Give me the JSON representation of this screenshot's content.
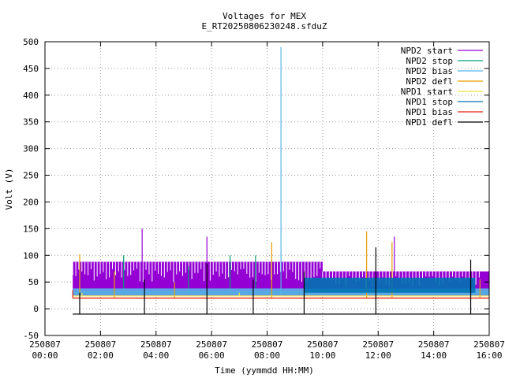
{
  "chart_data": {
    "type": "line",
    "title": "Voltages for MEX",
    "subtitle": "E_RT20250806230248.sfduZ",
    "xlabel": "Time (yymmdd HH:MM)",
    "ylabel": "Volt (V)",
    "xlim_hours": [
      0,
      16
    ],
    "ylim": [
      -50,
      500
    ],
    "grid": true,
    "legend_position": "top-right",
    "y_ticks": [
      "-50",
      "0",
      "50",
      "100",
      "150",
      "200",
      "250",
      "300",
      "350",
      "400",
      "450",
      "500"
    ],
    "x_ticks": [
      {
        "date": "250807",
        "time": "00:00"
      },
      {
        "date": "250807",
        "time": "02:00"
      },
      {
        "date": "250807",
        "time": "04:00"
      },
      {
        "date": "250807",
        "time": "06:00"
      },
      {
        "date": "250807",
        "time": "08:00"
      },
      {
        "date": "250807",
        "time": "10:00"
      },
      {
        "date": "250807",
        "time": "12:00"
      },
      {
        "date": "250807",
        "time": "14:00"
      },
      {
        "date": "250807",
        "time": "16:00"
      }
    ],
    "series": [
      {
        "name": "NPD2 start",
        "color": "#9400d3",
        "style": "band",
        "x_start": "01:00",
        "x_end": "16:00",
        "low": 25,
        "high": 88,
        "high_after_10h": 70,
        "spikes": [
          {
            "x": "03:30",
            "y": 150
          },
          {
            "x": "05:50",
            "y": 135
          },
          {
            "x": "12:35",
            "y": 135
          }
        ]
      },
      {
        "name": "NPD2 stop",
        "color": "#009e73",
        "style": "spikes",
        "x_start": "01:00",
        "x_end": "16:00",
        "base": 30,
        "spikes": [
          {
            "x": "01:15",
            "y": 40
          },
          {
            "x": "02:50",
            "y": 100
          },
          {
            "x": "05:10",
            "y": 80
          },
          {
            "x": "06:40",
            "y": 100
          },
          {
            "x": "07:35",
            "y": 100
          },
          {
            "x": "11:20",
            "y": 35
          }
        ]
      },
      {
        "name": "NPD2 bias",
        "color": "#56b4e9",
        "style": "band",
        "x_start": "01:00",
        "x_end": "16:00",
        "low": 25,
        "high": 38,
        "spikes": [
          {
            "x": "08:30",
            "y": 490
          }
        ]
      },
      {
        "name": "NPD2 defl",
        "color": "#e69f00",
        "style": "spikes",
        "x_start": "01:00",
        "x_end": "16:00",
        "base": 20,
        "spikes": [
          {
            "x": "01:15",
            "y": 102
          },
          {
            "x": "02:30",
            "y": 70
          },
          {
            "x": "04:40",
            "y": 50
          },
          {
            "x": "08:10",
            "y": 125
          },
          {
            "x": "11:35",
            "y": 145
          },
          {
            "x": "12:30",
            "y": 125
          },
          {
            "x": "15:40",
            "y": 55
          }
        ]
      },
      {
        "name": "NPD1 start",
        "color": "#f0e442",
        "style": "line",
        "x_start": "01:00",
        "x_end": "16:00",
        "base": 24,
        "spikes": [
          {
            "x": "01:20",
            "y": 30
          },
          {
            "x": "07:00",
            "y": 30
          }
        ]
      },
      {
        "name": "NPD1 stop",
        "color": "#0072b2",
        "style": "band",
        "x_start": "09:20",
        "x_end": "15:30",
        "low": 30,
        "high": 58
      },
      {
        "name": "NPD1 bias",
        "color": "#e51e10",
        "style": "line",
        "x_start": "01:00",
        "x_end": "16:00",
        "base": 20,
        "spikes": [
          {
            "x": "01:00",
            "y": 35
          }
        ]
      },
      {
        "name": "NPD1 defl",
        "color": "#000000",
        "style": "line",
        "x_start": "01:00",
        "x_end": "16:00",
        "base": -10,
        "spikes": [
          {
            "x": "01:15",
            "y": 30
          },
          {
            "x": "03:35",
            "y": 55
          },
          {
            "x": "05:50",
            "y": 85
          },
          {
            "x": "07:30",
            "y": 55
          },
          {
            "x": "09:20",
            "y": 70
          },
          {
            "x": "11:55",
            "y": 115
          },
          {
            "x": "15:20",
            "y": 92
          }
        ]
      }
    ]
  }
}
